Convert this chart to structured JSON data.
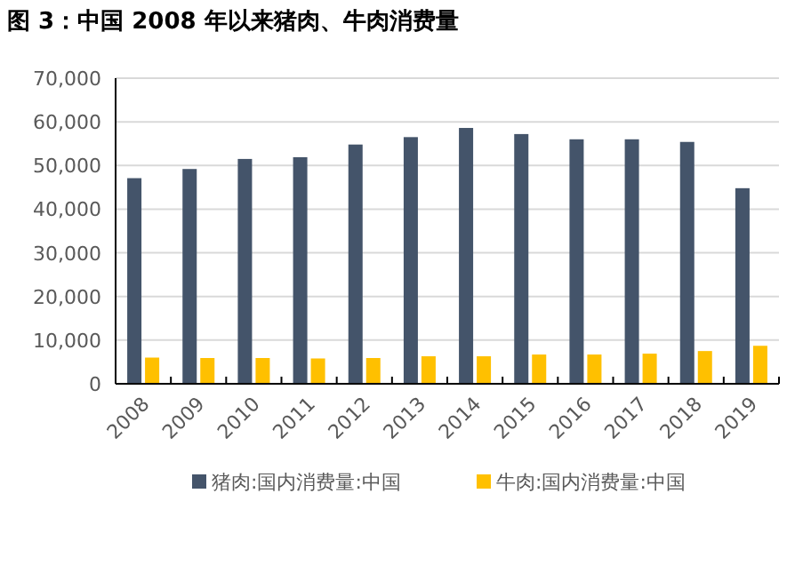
{
  "chart_data": {
    "type": "bar",
    "title": "图 3：中国 2008 年以来猪肉、牛肉消费量",
    "categories": [
      "2008",
      "2009",
      "2010",
      "2011",
      "2012",
      "2013",
      "2014",
      "2015",
      "2016",
      "2017",
      "2018",
      "2019"
    ],
    "series": [
      {
        "name": "猪肉:国内消费量:中国",
        "color": "#44546a",
        "values": [
          47100,
          49200,
          51500,
          51900,
          54800,
          56500,
          58600,
          57200,
          56000,
          56000,
          55400,
          44800
        ]
      },
      {
        "name": "牛肉:国内消费量:中国",
        "color": "#ffc000",
        "values": [
          6000,
          5900,
          5900,
          5800,
          5900,
          6300,
          6300,
          6700,
          6700,
          6900,
          7500,
          8700
        ]
      }
    ],
    "ylim": [
      0,
      70000
    ],
    "yticks": [
      {
        "value": 0,
        "label": "0"
      },
      {
        "value": 10000,
        "label": "10,000"
      },
      {
        "value": 20000,
        "label": "20,000"
      },
      {
        "value": 30000,
        "label": "30,000"
      },
      {
        "value": 40000,
        "label": "40,000"
      },
      {
        "value": 50000,
        "label": "50,000"
      },
      {
        "value": 60000,
        "label": "60,000"
      },
      {
        "value": 70000,
        "label": "70,000"
      }
    ],
    "grid": "y",
    "legend": "bottom"
  }
}
